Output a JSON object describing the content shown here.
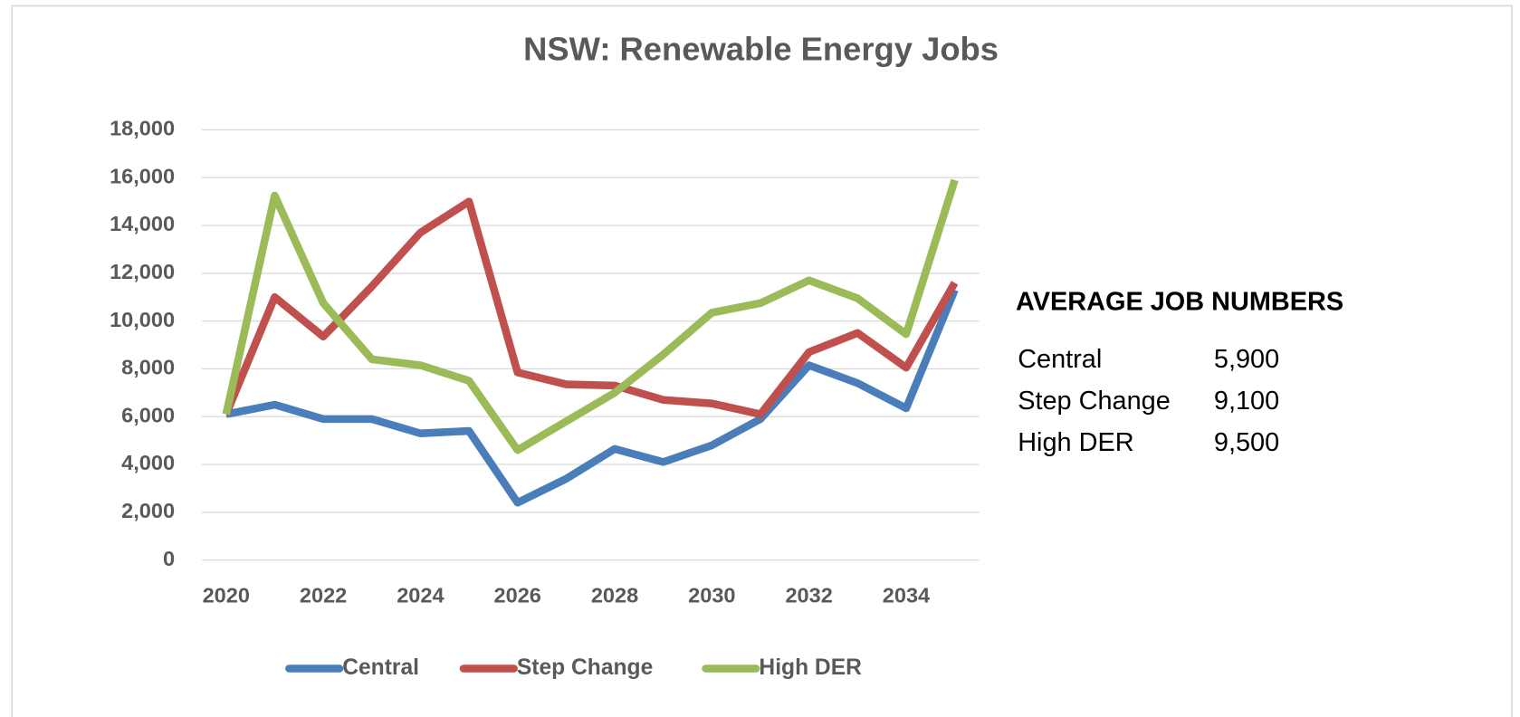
{
  "chart_data": {
    "type": "line",
    "title": "NSW: Renewable Energy Jobs",
    "x": [
      2020,
      2021,
      2022,
      2023,
      2024,
      2025,
      2026,
      2027,
      2028,
      2029,
      2030,
      2031,
      2032,
      2033,
      2034,
      2035
    ],
    "xlim": [
      2020,
      2035
    ],
    "xticks": [
      2020,
      2022,
      2024,
      2026,
      2028,
      2030,
      2032,
      2034
    ],
    "ylim": [
      0,
      18000
    ],
    "yticks": [
      0,
      {
        "value": 2000,
        "label": "2,000"
      },
      {
        "value": 4000,
        "label": "4,000"
      },
      {
        "value": 6000,
        "label": "6,000"
      },
      {
        "value": 8000,
        "label": "8,000"
      },
      {
        "value": 10000,
        "label": "10,000"
      },
      {
        "value": 12000,
        "label": "12,000"
      },
      {
        "value": 14000,
        "label": "14,000"
      },
      {
        "value": 16000,
        "label": "16,000"
      },
      {
        "value": 18000,
        "label": "18,000"
      }
    ],
    "grid": true,
    "legend": "bottom",
    "series": [
      {
        "name": "Central",
        "color": "#4a7ebb",
        "values": [
          6100,
          6500,
          5900,
          5900,
          5300,
          5400,
          2400,
          3400,
          4650,
          4100,
          4800,
          5900,
          8150,
          7400,
          6350,
          11300
        ]
      },
      {
        "name": "Step Change",
        "color": "#c0504d",
        "values": [
          6100,
          11000,
          9350,
          11450,
          13700,
          15000,
          7850,
          7350,
          7300,
          6700,
          6550,
          6100,
          8700,
          9500,
          8050,
          11600
        ]
      },
      {
        "name": "High DER",
        "color": "#9bbb59",
        "values": [
          6100,
          15250,
          10750,
          8400,
          8150,
          7500,
          4600,
          5800,
          7000,
          8600,
          10350,
          10750,
          11700,
          10950,
          9450,
          15900
        ]
      }
    ],
    "side_panel": {
      "title": "AVERAGE JOB NUMBERS",
      "rows": [
        [
          "Central",
          "5,900"
        ],
        [
          "Step Change",
          "9,100"
        ],
        [
          "High DER",
          "9,500"
        ]
      ]
    }
  }
}
